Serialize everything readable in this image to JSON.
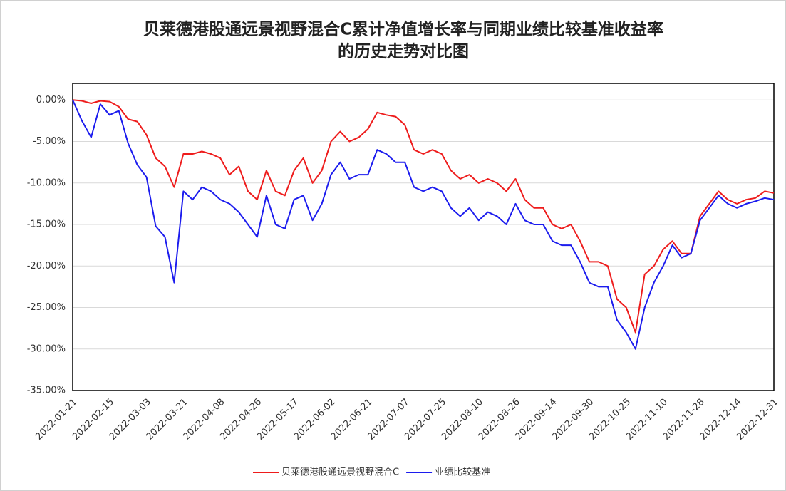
{
  "chart_data": {
    "type": "line",
    "title": "贝莱德港股通远景视野混合C累计净值增长率与同期业绩比较基准收益率",
    "subtitle": "的历史走势对比图",
    "categories": [
      "2022-01-21",
      null,
      null,
      null,
      "2022-02-15",
      null,
      null,
      null,
      "2022-03-03",
      null,
      null,
      null,
      "2022-03-21",
      null,
      null,
      null,
      "2022-04-08",
      null,
      null,
      null,
      "2022-04-26",
      null,
      null,
      null,
      "2022-05-17",
      null,
      null,
      null,
      "2022-06-02",
      null,
      null,
      null,
      "2022-06-21",
      null,
      null,
      null,
      "2022-07-07",
      null,
      null,
      null,
      "2022-07-25",
      null,
      null,
      null,
      "2022-08-10",
      null,
      null,
      null,
      "2022-08-26",
      null,
      null,
      null,
      "2022-09-14",
      null,
      null,
      null,
      "2022-09-30",
      null,
      null,
      null,
      "2022-10-25",
      null,
      null,
      null,
      "2022-11-10",
      null,
      null,
      null,
      "2022-11-28",
      null,
      null,
      null,
      "2022-12-14",
      null,
      null,
      null,
      "2022-12-31"
    ],
    "series": [
      {
        "name": "贝莱德港股通远景视野混合C",
        "color": "#ee1c1c",
        "values": [
          0,
          -0.1,
          -0.4,
          -0.1,
          -0.2,
          -0.8,
          -2.3,
          -2.6,
          -4.2,
          -7.0,
          -8.0,
          -10.5,
          -6.5,
          -6.5,
          -6.2,
          -6.5,
          -7.0,
          -9.0,
          -8.0,
          -11.0,
          -12.0,
          -8.5,
          -11.0,
          -11.5,
          -8.5,
          -7.0,
          -10.0,
          -8.5,
          -5.0,
          -3.8,
          -5.0,
          -4.5,
          -3.5,
          -1.5,
          -1.8,
          -2.0,
          -3.0,
          -6.0,
          -6.5,
          -6.0,
          -6.5,
          -8.5,
          -9.5,
          -9.0,
          -10.0,
          -9.5,
          -10.0,
          -11.0,
          -9.5,
          -12.0,
          -13.0,
          -13.0,
          -15.0,
          -15.5,
          -15.0,
          -17.0,
          -19.5,
          -19.5,
          -20.0,
          -24.0,
          -25.0,
          -28.0,
          -21.0,
          -20.0,
          -18.0,
          -17.0,
          -18.5,
          -18.5,
          -14.0,
          -12.5,
          -11.0,
          -12.0,
          -12.5,
          -12.0,
          -11.8,
          -11.0,
          -11.2
        ]
      },
      {
        "name": "业绩比较基准",
        "color": "#1c1cee",
        "values": [
          0,
          -2.5,
          -4.5,
          -0.5,
          -1.8,
          -1.3,
          -5.2,
          -7.8,
          -9.3,
          -15.2,
          -16.5,
          -22.0,
          -11.0,
          -12.0,
          -10.5,
          -11.0,
          -12.0,
          -12.5,
          -13.5,
          -15.0,
          -16.5,
          -11.5,
          -15.0,
          -15.5,
          -12.0,
          -11.5,
          -14.5,
          -12.5,
          -9.0,
          -7.5,
          -9.5,
          -9.0,
          -9.0,
          -6.0,
          -6.5,
          -7.5,
          -7.5,
          -10.5,
          -11.0,
          -10.5,
          -11.0,
          -13.0,
          -14.0,
          -13.0,
          -14.5,
          -13.5,
          -14.0,
          -15.0,
          -12.5,
          -14.5,
          -15.0,
          -15.0,
          -17.0,
          -17.5,
          -17.5,
          -19.5,
          -22.0,
          -22.5,
          -22.5,
          -26.5,
          -28.0,
          -30.0,
          -25.0,
          -22.0,
          -20.0,
          -17.5,
          -19.0,
          -18.5,
          -14.5,
          -13.0,
          -11.5,
          -12.5,
          -13.0,
          -12.5,
          -12.2,
          -11.8,
          -12.0
        ]
      }
    ],
    "ylim": [
      -35,
      2
    ],
    "yticks": [
      {
        "value": 0,
        "label": "0.00%"
      },
      {
        "value": -5,
        "label": "-5.00%"
      },
      {
        "value": -10,
        "label": "-10.00%"
      },
      {
        "value": -15,
        "label": "-15.00%"
      },
      {
        "value": -20,
        "label": "-20.00%"
      },
      {
        "value": -25,
        "label": "-25.00%"
      },
      {
        "value": -30,
        "label": "-30.00%"
      },
      {
        "value": -35,
        "label": "-35.00%"
      }
    ],
    "grid": true,
    "legend": "bottom"
  }
}
